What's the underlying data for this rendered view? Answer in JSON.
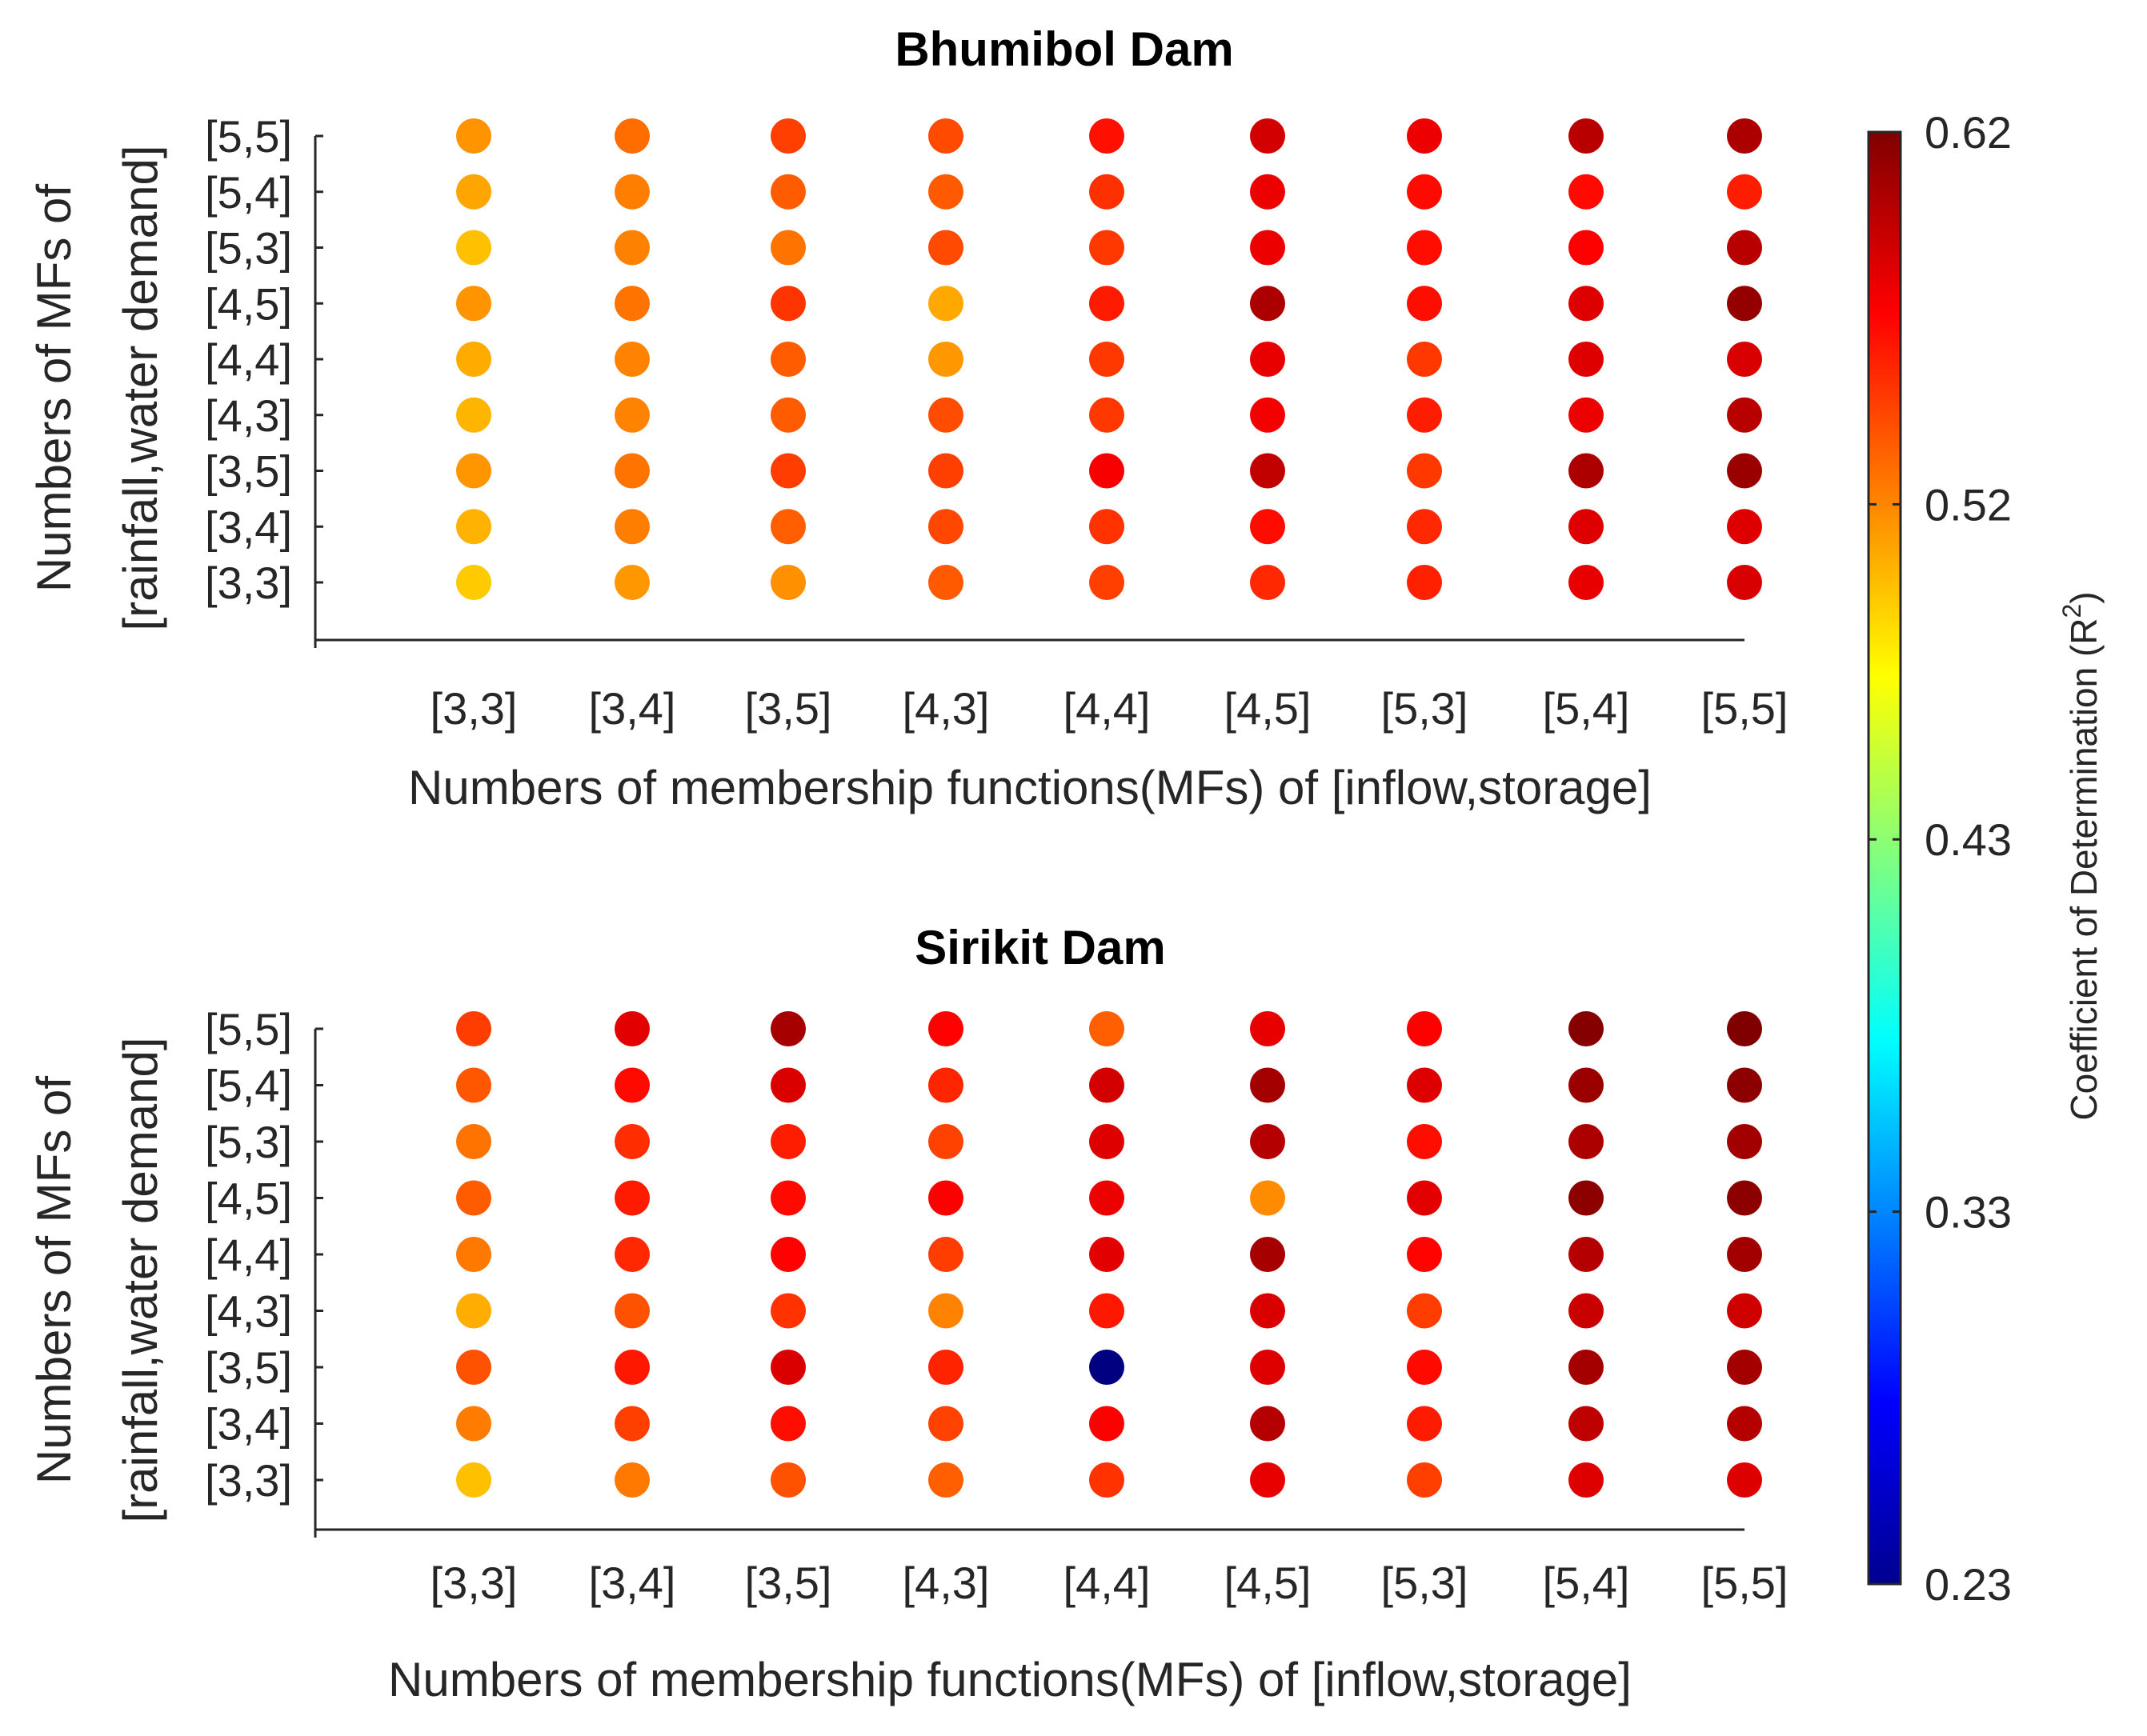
{
  "chart_data": {
    "type": "scatter",
    "x_categories": [
      "[3,3]",
      "[3,4]",
      "[3,5]",
      "[4,3]",
      "[4,4]",
      "[4,5]",
      "[5,3]",
      "[5,4]",
      "[5,5]"
    ],
    "y_categories": [
      "[3,3]",
      "[3,4]",
      "[3,5]",
      "[4,3]",
      "[4,4]",
      "[4,5]",
      "[5,3]",
      "[5,4]",
      "[5,5]"
    ],
    "xlabel": "Numbers of membership functions(MFs) of [inflow,storage]",
    "ylabel_line1": "Numbers of MFs of",
    "ylabel_line2": "[rainfall,water demand]",
    "colorbar": {
      "label_main": "Coefficient of Determination (R",
      "label_sup": "2",
      "label_end": ")",
      "colormap": "jet",
      "range": [
        0.23,
        0.62
      ],
      "tick_labels": [
        "0.23",
        "0.33",
        "0.43",
        "0.52",
        "0.62"
      ],
      "tick_values": [
        0.23,
        0.33,
        0.43,
        0.52,
        0.62
      ]
    },
    "panels": [
      {
        "title": "Bhumibol Dam",
        "note": "values rows ordered by y_categories top-to-bottom reversed: row 0 = [5,5]",
        "values": [
          [
            0.515,
            0.53,
            0.547,
            0.543,
            0.565,
            0.588,
            0.578,
            0.598,
            0.603
          ],
          [
            0.508,
            0.523,
            0.536,
            0.537,
            0.553,
            0.578,
            0.568,
            0.568,
            0.56
          ],
          [
            0.498,
            0.522,
            0.527,
            0.543,
            0.55,
            0.578,
            0.566,
            0.572,
            0.598
          ],
          [
            0.515,
            0.527,
            0.551,
            0.507,
            0.561,
            0.603,
            0.566,
            0.584,
            0.612
          ],
          [
            0.506,
            0.521,
            0.536,
            0.513,
            0.55,
            0.58,
            0.55,
            0.584,
            0.586
          ],
          [
            0.502,
            0.521,
            0.536,
            0.542,
            0.55,
            0.575,
            0.56,
            0.578,
            0.598
          ],
          [
            0.514,
            0.527,
            0.548,
            0.547,
            0.574,
            0.595,
            0.55,
            0.603,
            0.61
          ],
          [
            0.503,
            0.523,
            0.535,
            0.544,
            0.552,
            0.567,
            0.556,
            0.584,
            0.584
          ],
          [
            0.494,
            0.513,
            0.516,
            0.537,
            0.547,
            0.556,
            0.559,
            0.58,
            0.586
          ]
        ]
      },
      {
        "title": "Sirikit Dam",
        "values": [
          [
            0.548,
            0.582,
            0.605,
            0.571,
            0.535,
            0.58,
            0.572,
            0.617,
            0.62
          ],
          [
            0.538,
            0.568,
            0.585,
            0.557,
            0.588,
            0.606,
            0.584,
            0.61,
            0.615
          ],
          [
            0.527,
            0.554,
            0.56,
            0.546,
            0.584,
            0.6,
            0.566,
            0.603,
            0.607
          ],
          [
            0.536,
            0.561,
            0.568,
            0.572,
            0.578,
            0.518,
            0.582,
            0.615,
            0.615
          ],
          [
            0.525,
            0.556,
            0.571,
            0.548,
            0.582,
            0.605,
            0.57,
            0.6,
            0.607
          ],
          [
            0.505,
            0.54,
            0.552,
            0.521,
            0.562,
            0.585,
            0.548,
            0.592,
            0.59
          ],
          [
            0.54,
            0.562,
            0.585,
            0.558,
            0.23,
            0.584,
            0.568,
            0.606,
            0.606
          ],
          [
            0.524,
            0.547,
            0.566,
            0.546,
            0.572,
            0.6,
            0.561,
            0.596,
            0.6
          ],
          [
            0.498,
            0.525,
            0.54,
            0.535,
            0.552,
            0.58,
            0.547,
            0.584,
            0.584
          ]
        ]
      }
    ]
  }
}
